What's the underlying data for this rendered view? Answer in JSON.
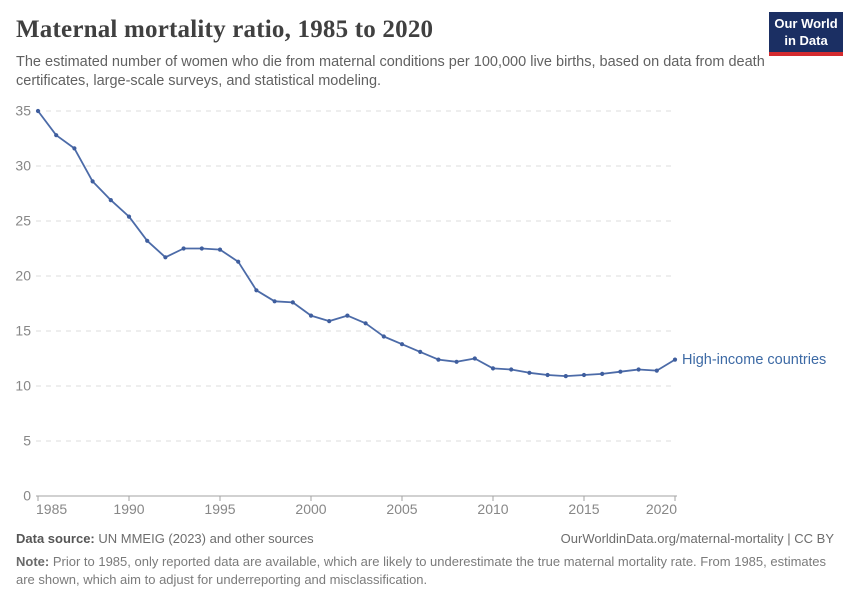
{
  "header": {
    "title": "Maternal mortality ratio, 1985 to 2020",
    "subtitle": "The estimated number of women who die from maternal conditions per 100,000 live births, based on data from death certificates, large-scale surveys, and statistical modeling.",
    "logo": {
      "line1": "Our World",
      "line2": "in Data"
    }
  },
  "chart_data": {
    "type": "line",
    "title": "Maternal mortality ratio, 1985 to 2020",
    "xlabel": "",
    "ylabel": "",
    "xlim": [
      1985,
      2020
    ],
    "ylim": [
      0,
      35
    ],
    "x_ticks": [
      1985,
      1990,
      1995,
      2000,
      2005,
      2010,
      2015,
      2020
    ],
    "y_ticks": [
      0,
      5,
      10,
      15,
      20,
      25,
      30,
      35
    ],
    "grid": "horizontal-dashed",
    "legend_position": "end-of-line-label",
    "series": [
      {
        "name": "High-income countries",
        "color": "#4c6ba8",
        "marker_color": "#3f5e9e",
        "label_color": "#3d6aa5",
        "x": [
          1985,
          1986,
          1987,
          1988,
          1989,
          1990,
          1991,
          1992,
          1993,
          1994,
          1995,
          1996,
          1997,
          1998,
          1999,
          2000,
          2001,
          2002,
          2003,
          2004,
          2005,
          2006,
          2007,
          2008,
          2009,
          2010,
          2011,
          2012,
          2013,
          2014,
          2015,
          2016,
          2017,
          2018,
          2019,
          2020
        ],
        "values": [
          35.0,
          32.8,
          31.6,
          28.6,
          26.9,
          25.4,
          23.2,
          21.7,
          22.5,
          22.5,
          22.4,
          21.3,
          18.7,
          17.7,
          17.6,
          16.4,
          15.9,
          16.4,
          15.7,
          14.5,
          13.8,
          13.1,
          12.4,
          12.2,
          12.5,
          11.6,
          11.5,
          11.2,
          11.0,
          10.9,
          11.0,
          11.1,
          11.3,
          11.5,
          11.4,
          12.4
        ]
      }
    ]
  },
  "footer": {
    "datasource_label": "Data source:",
    "datasource_value": " UN MMEIG (2023) and other sources",
    "link": "OurWorldinData.org/maternal-mortality | CC BY",
    "note_label": "Note:",
    "note_value": " Prior to 1985, only reported data are available, which are likely to underestimate the true maternal mortality rate. From 1985, estimates are shown, which aim to adjust for underreporting and misclassification."
  },
  "colors": {
    "axis_text": "#878787",
    "gridline": "#dcdcdc",
    "axis_line": "#a3a3a3",
    "logo_bg": "#1b2f63",
    "logo_stripe": "#d42b2f"
  }
}
